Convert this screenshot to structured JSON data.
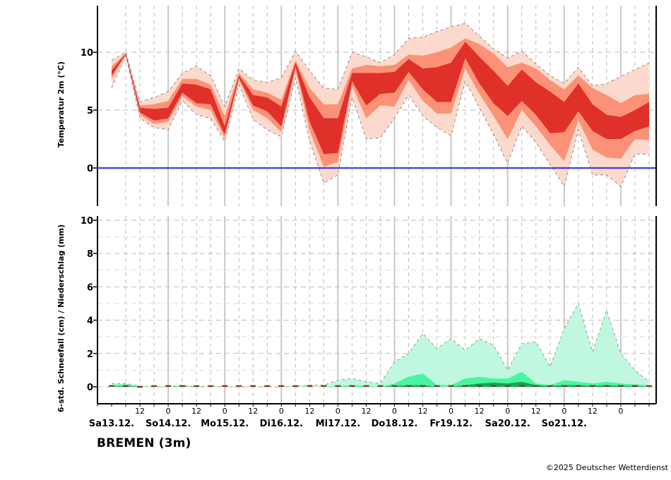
{
  "station": "BREMEN (3m)",
  "copyright": "©2025 Deutscher Wetterdienst",
  "colors": {
    "temp_outer": "#fbd9cc",
    "temp_mid": "#fb9277",
    "temp_inner": "#e0302a",
    "zero_line": "#3b3fd9",
    "precip_outer": "#bff8de",
    "precip_mid": "#4af5a2",
    "precip_inner": "#14a55b",
    "snow": "#7a3b14",
    "grid": "#bbbbbb",
    "day_line": "#c8c8c8"
  },
  "chart_data": [
    {
      "type": "area",
      "ylabel": "Temperatur 2m (°C)",
      "yticks": [
        0,
        5,
        10
      ],
      "ylim": [
        -3.2,
        14.2
      ],
      "x_hours": [
        0,
        6,
        12,
        18,
        24,
        30,
        36,
        42,
        48,
        54,
        60,
        66,
        72,
        78,
        84,
        90,
        96,
        102,
        108,
        114,
        120,
        126,
        132,
        138,
        144,
        150,
        156,
        162,
        168,
        174,
        180,
        186,
        192,
        198,
        204,
        210,
        216,
        222,
        228
      ],
      "series": [
        {
          "name": "p10",
          "values": [
            6.9,
            9.7,
            4.3,
            3.5,
            3.3,
            5.8,
            4.6,
            4.3,
            2.3,
            7.2,
            4.2,
            3.3,
            2.7,
            7.8,
            2.3,
            -1.3,
            -0.6,
            6.1,
            2.5,
            2.6,
            4.3,
            6.3,
            4.5,
            3.5,
            2.8,
            7.5,
            5.2,
            2.9,
            0.4,
            3.6,
            2.2,
            0.3,
            -1.6,
            3.3,
            -0.6,
            -0.6,
            -1.6,
            1.2,
            1.2
          ]
        },
        {
          "name": "p25",
          "values": [
            7.7,
            9.8,
            4.6,
            3.8,
            4.0,
            6.2,
            5.3,
            5.0,
            2.6,
            7.6,
            5.0,
            4.3,
            3.1,
            8.5,
            3.2,
            0.1,
            0.5,
            7.1,
            4.3,
            5.4,
            5.3,
            7.6,
            5.8,
            4.7,
            4.7,
            8.6,
            6.4,
            4.5,
            2.5,
            5.0,
            3.6,
            2.0,
            0.6,
            4.1,
            1.6,
            0.9,
            0.8,
            2.5,
            2.4
          ]
        },
        {
          "name": "p40",
          "values": [
            8.0,
            9.8,
            4.8,
            4.1,
            4.3,
            6.5,
            5.6,
            5.5,
            2.9,
            7.8,
            5.4,
            4.9,
            3.6,
            8.8,
            4.0,
            1.2,
            1.3,
            7.5,
            5.4,
            6.4,
            6.5,
            8.3,
            6.8,
            5.7,
            5.7,
            9.5,
            7.3,
            5.6,
            4.5,
            5.8,
            4.6,
            3.0,
            3.1,
            4.9,
            3.2,
            2.5,
            2.5,
            3.2,
            3.6
          ]
        },
        {
          "name": "p60",
          "values": [
            8.4,
            9.9,
            5.2,
            5.1,
            5.2,
            7.3,
            7.2,
            6.8,
            3.6,
            8.0,
            6.3,
            6.1,
            5.3,
            9.1,
            6.1,
            4.3,
            4.3,
            8.2,
            8.2,
            8.2,
            8.3,
            9.4,
            8.6,
            8.7,
            9.1,
            10.9,
            9.6,
            8.4,
            7.1,
            8.5,
            7.4,
            6.6,
            5.7,
            7.3,
            5.5,
            4.6,
            4.4,
            5.0,
            5.7
          ]
        },
        {
          "name": "p75",
          "values": [
            8.8,
            9.9,
            5.4,
            5.5,
            5.8,
            7.7,
            7.7,
            7.2,
            4.5,
            8.2,
            6.8,
            6.5,
            5.9,
            9.3,
            6.9,
            5.5,
            5.5,
            8.6,
            8.9,
            8.8,
            8.9,
            9.8,
            9.7,
            10.0,
            10.4,
            11.2,
            10.7,
            9.9,
            8.7,
            9.1,
            8.6,
            7.6,
            6.8,
            8.0,
            6.9,
            6.3,
            5.6,
            6.3,
            6.4
          ]
        },
        {
          "name": "p90",
          "values": [
            9.3,
            10.0,
            5.7,
            6.1,
            6.6,
            8.2,
            8.8,
            8.0,
            5.3,
            8.6,
            7.6,
            7.4,
            7.8,
            10.1,
            8.4,
            6.9,
            6.8,
            10.0,
            9.6,
            9.1,
            9.8,
            11.2,
            11.3,
            11.8,
            12.2,
            12.5,
            11.4,
            10.3,
            9.5,
            10.1,
            9.0,
            8.0,
            7.3,
            8.7,
            7.1,
            7.3,
            7.9,
            8.5,
            9.1
          ]
        }
      ]
    },
    {
      "type": "area",
      "ylabel": "6-std. Schneefall (cm) / Niederschlag (mm)",
      "yticks": [
        0,
        2,
        4,
        6,
        8,
        10
      ],
      "ylim": [
        -1,
        10.5
      ],
      "x_hours": [
        0,
        6,
        12,
        18,
        24,
        30,
        36,
        42,
        48,
        54,
        60,
        66,
        72,
        78,
        84,
        90,
        96,
        102,
        108,
        114,
        120,
        126,
        132,
        138,
        144,
        150,
        156,
        162,
        168,
        174,
        180,
        186,
        192,
        198,
        204,
        210,
        216,
        222,
        228
      ],
      "series": [
        {
          "name": "p90",
          "values": [
            0.2,
            0.2,
            0.05,
            0.0,
            0.0,
            0.1,
            0.0,
            0.05,
            0.0,
            0.0,
            0.0,
            0.0,
            0.0,
            0.05,
            0.1,
            0.1,
            0.4,
            0.5,
            0.3,
            0.2,
            1.5,
            2.0,
            3.2,
            2.3,
            2.9,
            2.2,
            2.9,
            2.5,
            1.0,
            2.6,
            2.7,
            1.2,
            3.5,
            5.0,
            2.1,
            4.6,
            2.0,
            1.0,
            0.3
          ]
        },
        {
          "name": "p75",
          "values": [
            0.1,
            0.15,
            0.0,
            0.0,
            0.0,
            0.05,
            0.0,
            0.0,
            0.0,
            0.0,
            0.0,
            0.0,
            0.0,
            0.0,
            0.0,
            0.0,
            0.05,
            0.1,
            0.05,
            0.0,
            0.2,
            0.6,
            0.8,
            0.1,
            0.1,
            0.5,
            0.6,
            0.5,
            0.5,
            0.9,
            0.2,
            0.1,
            0.4,
            0.3,
            0.2,
            0.3,
            0.2,
            0.15,
            0.1
          ]
        },
        {
          "name": "p50",
          "values": [
            0.0,
            0.05,
            0.0,
            0.0,
            0.0,
            0.0,
            0.0,
            0.0,
            0.0,
            0.0,
            0.0,
            0.0,
            0.0,
            0.0,
            0.0,
            0.0,
            0.0,
            0.0,
            0.0,
            0.0,
            0.05,
            0.1,
            0.1,
            0.0,
            0.0,
            0.1,
            0.2,
            0.25,
            0.2,
            0.3,
            0.1,
            0.05,
            0.1,
            0.1,
            0.05,
            0.1,
            0.05,
            0.05,
            0.0
          ]
        },
        {
          "name": "snow",
          "values": [
            0.05,
            0.05,
            0.0,
            0.05,
            0.05,
            0.05,
            0.05,
            0.05,
            0.05,
            0.05,
            0.05,
            0.05,
            0.05,
            0.05,
            0.05,
            0.05,
            0.05,
            0.05,
            0.05,
            0.05,
            0.05,
            0.05,
            0.05,
            0.05,
            0.05,
            0.05,
            0.05,
            0.05,
            0.05,
            0.05,
            0.05,
            0.05,
            0.05,
            0.05,
            0.05,
            0.05,
            0.05,
            0.05,
            0.05
          ]
        }
      ]
    }
  ],
  "x_axis": {
    "hour_labels": [
      {
        "h": 12,
        "label": "12"
      },
      {
        "h": 24,
        "label": "0"
      },
      {
        "h": 36,
        "label": "12"
      },
      {
        "h": 48,
        "label": "0"
      },
      {
        "h": 60,
        "label": "12"
      },
      {
        "h": 72,
        "label": "0"
      },
      {
        "h": 84,
        "label": "12"
      },
      {
        "h": 96,
        "label": "0"
      },
      {
        "h": 108,
        "label": "12"
      },
      {
        "h": 120,
        "label": "0"
      },
      {
        "h": 132,
        "label": "12"
      },
      {
        "h": 144,
        "label": "0"
      },
      {
        "h": 156,
        "label": "12"
      },
      {
        "h": 168,
        "label": "0"
      },
      {
        "h": 180,
        "label": "12"
      },
      {
        "h": 192,
        "label": "0"
      },
      {
        "h": 204,
        "label": "12"
      },
      {
        "h": 216,
        "label": "0"
      }
    ],
    "day_labels": [
      {
        "h": 0,
        "label": "Sa13.12."
      },
      {
        "h": 24,
        "label": "So14.12."
      },
      {
        "h": 48,
        "label": "Mo15.12."
      },
      {
        "h": 72,
        "label": "Di16.12."
      },
      {
        "h": 96,
        "label": "Mi17.12."
      },
      {
        "h": 120,
        "label": "Do18.12."
      },
      {
        "h": 144,
        "label": "Fr19.12."
      },
      {
        "h": 168,
        "label": "Sa20.12."
      },
      {
        "h": 192,
        "label": "So21.12."
      }
    ]
  }
}
